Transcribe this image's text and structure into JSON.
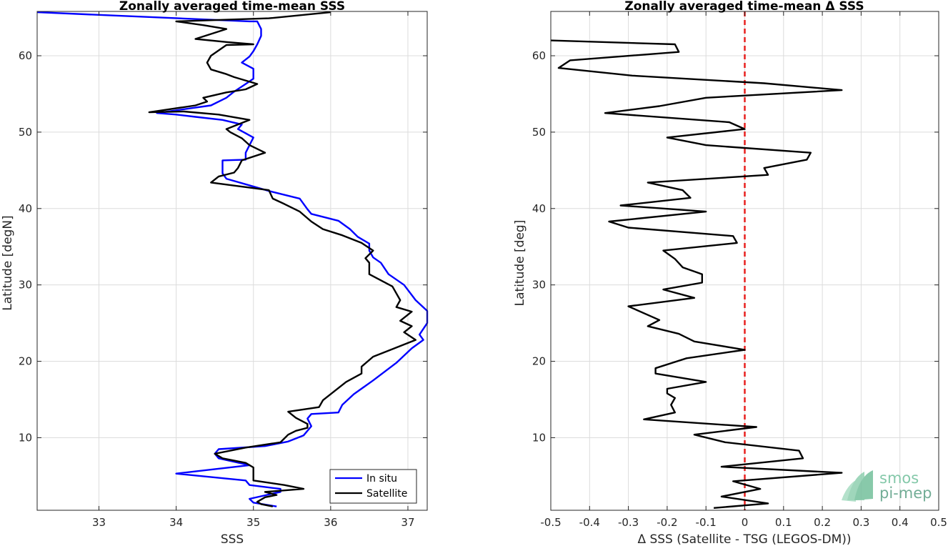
{
  "chart_data": [
    {
      "type": "line",
      "title": "Zonally averaged time-mean SSS",
      "xlabel": "SSS",
      "ylabel": "Latitude [degN]",
      "xlim": [
        32.2,
        37.25
      ],
      "ylim": [
        0.5,
        65.8
      ],
      "xticks": [
        33,
        34,
        35,
        36,
        37
      ],
      "yticks": [
        10,
        20,
        30,
        40,
        50,
        60
      ],
      "grid": true,
      "legend_position": "bottom-right",
      "series": [
        {
          "name": "In situ",
          "color": "#0000ff",
          "points": [
            [
              35.3,
              1
            ],
            [
              35.0,
              1.5
            ],
            [
              34.95,
              2
            ],
            [
              35.35,
              2.9
            ],
            [
              35.35,
              3.3
            ],
            [
              34.95,
              3.8
            ],
            [
              34.9,
              4.4
            ],
            [
              34.0,
              5.3
            ],
            [
              34.95,
              6.4
            ],
            [
              34.55,
              7.3
            ],
            [
              34.5,
              7.9
            ],
            [
              34.55,
              8.5
            ],
            [
              35.15,
              8.9
            ],
            [
              35.45,
              9.5
            ],
            [
              35.65,
              10.3
            ],
            [
              35.75,
              11.5
            ],
            [
              35.7,
              12.5
            ],
            [
              35.75,
              13.1
            ],
            [
              36.1,
              13.3
            ],
            [
              36.15,
              14.3
            ],
            [
              36.3,
              15.7
            ],
            [
              36.55,
              17.5
            ],
            [
              36.85,
              19.8
            ],
            [
              37.05,
              21.7
            ],
            [
              37.2,
              22.8
            ],
            [
              37.15,
              23.5
            ],
            [
              37.25,
              25
            ],
            [
              37.25,
              26.6
            ],
            [
              37.1,
              28
            ],
            [
              36.95,
              30
            ],
            [
              36.75,
              31.4
            ],
            [
              36.65,
              32.9
            ],
            [
              36.55,
              33.6
            ],
            [
              36.5,
              34.5
            ],
            [
              36.5,
              35.4
            ],
            [
              36.35,
              36.3
            ],
            [
              36.25,
              37.3
            ],
            [
              36.1,
              38.4
            ],
            [
              35.75,
              39.3
            ],
            [
              35.7,
              39.9
            ],
            [
              35.6,
              41.3
            ],
            [
              35.2,
              42.3
            ],
            [
              34.65,
              43.9
            ],
            [
              34.6,
              44.6
            ],
            [
              34.6,
              46.3
            ],
            [
              34.9,
              46.4
            ],
            [
              34.9,
              47.3
            ],
            [
              34.95,
              48.3
            ],
            [
              35.0,
              49.3
            ],
            [
              34.8,
              50.4
            ],
            [
              34.85,
              51
            ],
            [
              34.6,
              51.6
            ],
            [
              34.25,
              52
            ],
            [
              34.0,
              52.3
            ],
            [
              33.75,
              52.5
            ],
            [
              34.45,
              53.5
            ],
            [
              34.65,
              54.5
            ],
            [
              34.75,
              55.3
            ],
            [
              34.9,
              56.3
            ],
            [
              35.0,
              57
            ],
            [
              35.0,
              57.5
            ],
            [
              35.0,
              58.3
            ],
            [
              34.85,
              59.1
            ],
            [
              34.95,
              59.9
            ],
            [
              35.0,
              60.6
            ],
            [
              35.05,
              61.5
            ],
            [
              35.1,
              62.6
            ],
            [
              35.1,
              63.5
            ],
            [
              35.05,
              64.5
            ],
            [
              34.95,
              64.5
            ],
            [
              32.2,
              65.7
            ]
          ]
        },
        {
          "name": "Satellite",
          "color": "#000000",
          "points": [
            [
              35.25,
              1
            ],
            [
              35.1,
              1.3
            ],
            [
              35.05,
              1.6
            ],
            [
              35.15,
              2.2
            ],
            [
              35.3,
              2.5
            ],
            [
              35.15,
              2.9
            ],
            [
              35.65,
              3.3
            ],
            [
              35.4,
              3.8
            ],
            [
              35.0,
              4.4
            ],
            [
              35.0,
              5.3
            ],
            [
              35.0,
              6.1
            ],
            [
              34.9,
              6.7
            ],
            [
              34.6,
              7.3
            ],
            [
              34.5,
              7.9
            ],
            [
              34.9,
              8.7
            ],
            [
              35.35,
              9.4
            ],
            [
              35.45,
              10.4
            ],
            [
              35.55,
              10.9
            ],
            [
              35.7,
              11.3
            ],
            [
              35.7,
              11.8
            ],
            [
              35.55,
              12.6
            ],
            [
              35.45,
              13.4
            ],
            [
              35.85,
              14
            ],
            [
              35.9,
              14.9
            ],
            [
              36.2,
              17.3
            ],
            [
              36.4,
              18.4
            ],
            [
              36.4,
              19.3
            ],
            [
              36.55,
              20.6
            ],
            [
              36.75,
              21.4
            ],
            [
              37.1,
              22.8
            ],
            [
              36.95,
              23.8
            ],
            [
              37.05,
              24.6
            ],
            [
              36.9,
              25.3
            ],
            [
              37.05,
              26.5
            ],
            [
              36.85,
              27.1
            ],
            [
              36.9,
              28
            ],
            [
              36.8,
              29.8
            ],
            [
              36.5,
              31.4
            ],
            [
              36.5,
              32.9
            ],
            [
              36.45,
              33.5
            ],
            [
              36.55,
              34.5
            ],
            [
              36.4,
              35.5
            ],
            [
              36.15,
              36.5
            ],
            [
              35.9,
              37.3
            ],
            [
              35.75,
              38.3
            ],
            [
              35.6,
              39.6
            ],
            [
              35.4,
              40.6
            ],
            [
              35.25,
              41.3
            ],
            [
              35.2,
              42.4
            ],
            [
              34.45,
              43.4
            ],
            [
              34.55,
              44.2
            ],
            [
              34.75,
              44.7
            ],
            [
              34.8,
              45.3
            ],
            [
              34.85,
              46.3
            ],
            [
              35.15,
              47.3
            ],
            [
              34.95,
              48.3
            ],
            [
              34.85,
              49.2
            ],
            [
              34.7,
              50
            ],
            [
              34.65,
              50.4
            ],
            [
              34.95,
              51.6
            ],
            [
              34.55,
              52.3
            ],
            [
              34.1,
              52.7
            ],
            [
              33.65,
              52.6
            ],
            [
              34.25,
              53.5
            ],
            [
              34.4,
              54
            ],
            [
              34.35,
              54.5
            ],
            [
              34.65,
              55.2
            ],
            [
              34.9,
              55.6
            ],
            [
              35.05,
              56.3
            ],
            [
              34.75,
              57.2
            ],
            [
              34.65,
              57.6
            ],
            [
              34.45,
              58.2
            ],
            [
              34.4,
              59.1
            ],
            [
              34.45,
              60
            ],
            [
              34.55,
              60.7
            ],
            [
              34.65,
              61.4
            ],
            [
              35.0,
              61.5
            ],
            [
              34.65,
              61.8
            ],
            [
              34.25,
              62.2
            ],
            [
              34.65,
              63.5
            ],
            [
              34.35,
              64
            ],
            [
              34.0,
              64.5
            ],
            [
              35.2,
              64.9
            ],
            [
              36.0,
              65.7
            ]
          ]
        }
      ]
    },
    {
      "type": "line",
      "title": "Zonally averaged time-mean Δ SSS",
      "xlabel": "Δ SSS (Satellite - TSG (LEGOS-DM))",
      "ylabel": "Latitude [deg]",
      "xlim": [
        -0.5,
        0.5
      ],
      "ylim": [
        0.5,
        65.8
      ],
      "xticks": [
        -0.5,
        -0.4,
        -0.3,
        -0.2,
        -0.1,
        0,
        0.1,
        0.2,
        0.3,
        0.4,
        0.5
      ],
      "xticklabels": [
        "-0.5",
        "-0.4",
        "-0.3",
        "-0.2",
        "-0.1",
        "0",
        "0.1",
        "0.2",
        "0.3",
        "0.4",
        "0.5"
      ],
      "yticks": [
        10,
        20,
        30,
        40,
        50,
        60
      ],
      "grid": true,
      "reference_line": {
        "x": 0,
        "color": "#e8201f",
        "style": "dashed"
      },
      "series": [
        {
          "color": "#000000",
          "points": [
            [
              -0.08,
              0.8
            ],
            [
              0.06,
              1.4
            ],
            [
              -0.06,
              2.3
            ],
            [
              0.04,
              3.3
            ],
            [
              -0.03,
              4.3
            ],
            [
              0.25,
              5.4
            ],
            [
              -0.06,
              6.2
            ],
            [
              0.15,
              7.3
            ],
            [
              0.14,
              8.3
            ],
            [
              -0.05,
              9.4
            ],
            [
              -0.13,
              10.4
            ],
            [
              0.03,
              11.4
            ],
            [
              -0.26,
              12.4
            ],
            [
              -0.18,
              13.3
            ],
            [
              -0.19,
              14.3
            ],
            [
              -0.18,
              15.2
            ],
            [
              -0.2,
              15.8
            ],
            [
              -0.2,
              16.4
            ],
            [
              -0.1,
              17.3
            ],
            [
              -0.23,
              18.4
            ],
            [
              -0.23,
              19.1
            ],
            [
              -0.15,
              20.4
            ],
            [
              0.0,
              21.5
            ],
            [
              -0.13,
              22.6
            ],
            [
              -0.17,
              23.6
            ],
            [
              -0.25,
              24.6
            ],
            [
              -0.22,
              25.4
            ],
            [
              -0.3,
              27.2
            ],
            [
              -0.13,
              28.3
            ],
            [
              -0.21,
              29.4
            ],
            [
              -0.11,
              30.3
            ],
            [
              -0.11,
              31.4
            ],
            [
              -0.16,
              32.3
            ],
            [
              -0.18,
              33.4
            ],
            [
              -0.21,
              34.5
            ],
            [
              -0.02,
              35.5
            ],
            [
              -0.03,
              36.4
            ],
            [
              -0.3,
              37.5
            ],
            [
              -0.35,
              38.3
            ],
            [
              -0.1,
              39.6
            ],
            [
              -0.32,
              40.4
            ],
            [
              -0.14,
              41.4
            ],
            [
              -0.16,
              42.4
            ],
            [
              -0.25,
              43.4
            ],
            [
              0.06,
              44.4
            ],
            [
              0.05,
              45.3
            ],
            [
              0.16,
              46.4
            ],
            [
              0.17,
              47.3
            ],
            [
              -0.1,
              48.3
            ],
            [
              -0.2,
              49.3
            ],
            [
              0.0,
              50.4
            ],
            [
              -0.04,
              51.3
            ],
            [
              -0.36,
              52.5
            ],
            [
              -0.22,
              53.4
            ],
            [
              -0.1,
              54.5
            ],
            [
              0.25,
              55.5
            ],
            [
              0.05,
              56.4
            ],
            [
              -0.29,
              57.4
            ],
            [
              -0.48,
              58.4
            ],
            [
              -0.45,
              59.4
            ],
            [
              -0.17,
              60.5
            ],
            [
              -0.18,
              61.5
            ],
            [
              -0.5,
              62
            ]
          ]
        }
      ]
    }
  ],
  "logo": {
    "line1": "smos",
    "line2": "pi-mep"
  }
}
